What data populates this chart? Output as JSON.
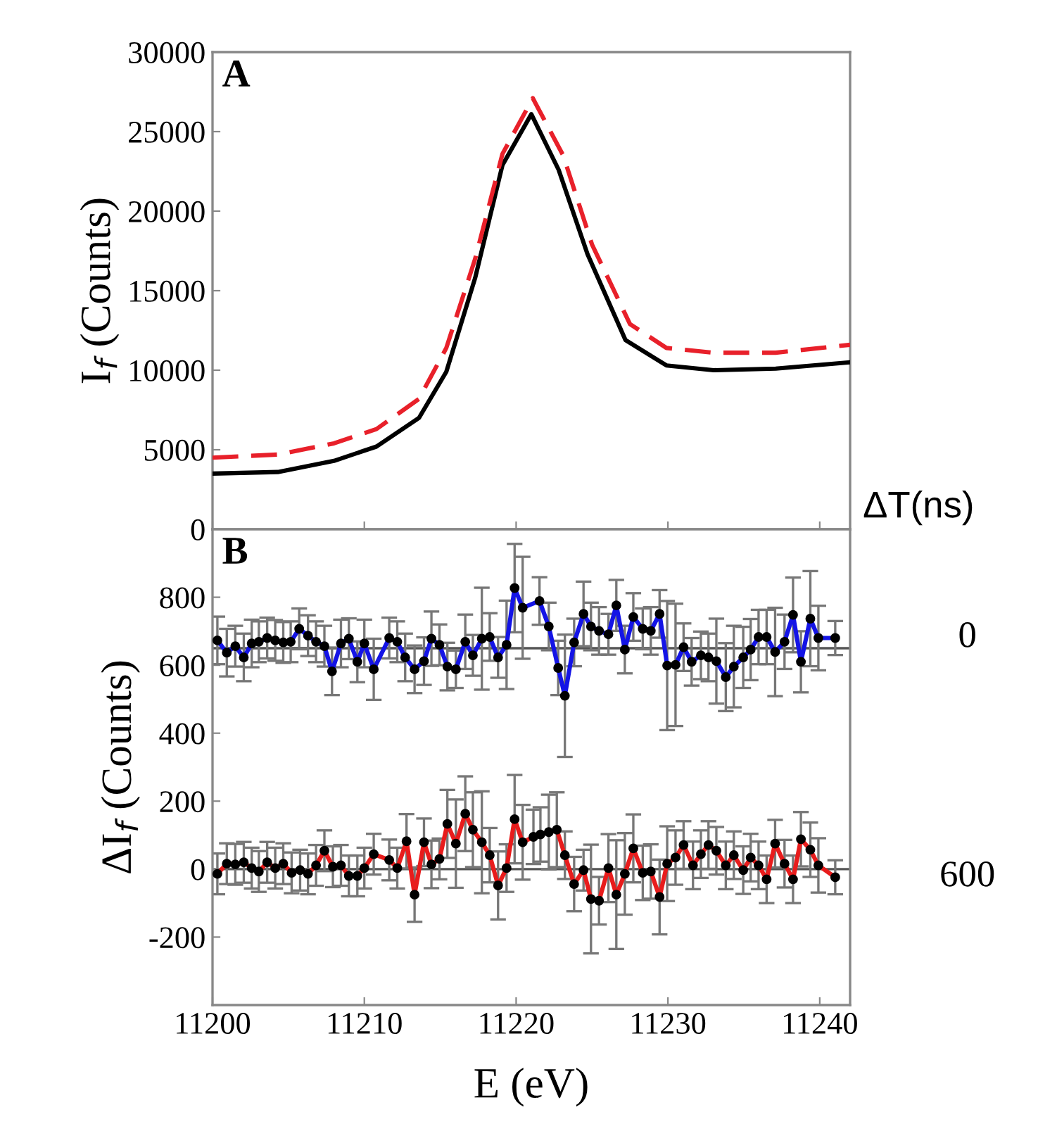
{
  "chart_data": [
    {
      "type": "line",
      "annotations": [
        "A"
      ],
      "ylabel": "I$_{f}$ (Counts)",
      "xlim": [
        11200,
        11242
      ],
      "xticks": [
        11200,
        11210,
        11220,
        11230,
        11240
      ],
      "ylim": [
        0,
        30000
      ],
      "yticks": [
        0,
        5000,
        10000,
        15000,
        20000,
        25000,
        30000
      ],
      "tick_labels": "y",
      "grid": false,
      "legend": false,
      "marker": "none",
      "series": [
        {
          "color": "#000000",
          "line_style": "solid",
          "x": [
            11200,
            11204.3,
            11208,
            11210.8,
            11213.6,
            11215.4,
            11217.3,
            11219.1,
            11221.0,
            11222.8,
            11224.7,
            11227.2,
            11229.9,
            11233.0,
            11237.1,
            11242
          ],
          "values": [
            3500,
            3600,
            4300,
            5200,
            7000,
            9900,
            15800,
            22900,
            26100,
            22600,
            17300,
            11900,
            10300,
            10000,
            10100,
            10500
          ]
        },
        {
          "color": "#e8202a",
          "line_style": "dashed",
          "x": [
            11200,
            11204.3,
            11208,
            11210.8,
            11213.6,
            11215.4,
            11217.3,
            11219.1,
            11221.1,
            11223.1,
            11225.0,
            11227.5,
            11229.9,
            11233.0,
            11237.1,
            11242
          ],
          "values": [
            4500,
            4700,
            5400,
            6300,
            8200,
            11400,
            17000,
            23600,
            27100,
            23500,
            17900,
            12900,
            11400,
            11100,
            11100,
            11600
          ]
        }
      ]
    },
    {
      "type": "line",
      "annotations": [
        "B"
      ],
      "xlabel": "E (eV)",
      "ylabel": "ΔI$_{f}$ (Counts)",
      "legend_title": "ΔT(ns)",
      "xlim": [
        11200,
        11242
      ],
      "xticks": [
        11200,
        11210,
        11220,
        11230,
        11240
      ],
      "ylim": [
        -400,
        1000
      ],
      "yticks": [
        {
          "value": -400,
          "label": null
        },
        -200,
        0,
        200,
        400,
        600,
        800,
        {
          "value": 1000,
          "label": null
        }
      ],
      "grid": false,
      "marker": "circle",
      "ref_lines": [
        {
          "axis": "y",
          "value": 650,
          "color": "#555555"
        },
        {
          "axis": "y",
          "value": 0,
          "color": "#555555"
        }
      ],
      "series": [
        {
          "name": "0",
          "color": "#1414e6",
          "line_style": "solid",
          "x": [
            11200.32,
            11200.94,
            11201.5,
            11202.06,
            11202.58,
            11203.05,
            11203.6,
            11204.13,
            11204.66,
            11205.15,
            11205.71,
            11206.29,
            11206.82,
            11207.37,
            11207.87,
            11208.46,
            11208.98,
            11209.54,
            11210.0,
            11210.62,
            11211.64,
            11212.17,
            11212.69,
            11213.31,
            11213.93,
            11214.42,
            11214.95,
            11215.47,
            11216.03,
            11216.65,
            11217.15,
            11217.74,
            11218.26,
            11218.81,
            11219.37,
            11219.9,
            11220.43,
            11221.54,
            11222.15,
            11222.77,
            11223.21,
            11223.82,
            11224.44,
            11224.93,
            11225.46,
            11226.08,
            11226.6,
            11227.16,
            11227.72,
            11228.34,
            11228.87,
            11229.45,
            11229.95,
            11230.5,
            11231.03,
            11231.56,
            11232.17,
            11232.67,
            11233.19,
            11233.81,
            11234.34,
            11234.96,
            11235.45,
            11235.97,
            11236.5,
            11237.06,
            11237.68,
            11238.24,
            11238.76,
            11239.38,
            11239.91,
            11241.02
          ],
          "values": [
            673,
            637,
            656,
            623,
            664,
            669,
            680,
            673,
            667,
            669,
            707,
            687,
            669,
            656,
            582,
            664,
            678,
            610,
            664,
            588,
            680,
            669,
            623,
            588,
            612,
            678,
            660,
            596,
            588,
            669,
            629,
            678,
            683,
            623,
            660,
            827,
            769,
            789,
            714,
            592,
            510,
            667,
            751,
            714,
            701,
            691,
            776,
            646,
            742,
            707,
            701,
            751,
            599,
            601,
            653,
            610,
            629,
            623,
            612,
            565,
            596,
            623,
            646,
            683,
            683,
            639,
            669,
            748,
            610,
            737,
            680,
            680
          ],
          "errors": [
            70,
            70,
            60,
            70,
            70,
            60,
            60,
            60,
            60,
            60,
            60,
            60,
            60,
            60,
            70,
            70,
            60,
            60,
            70,
            90,
            60,
            60,
            70,
            70,
            70,
            80,
            60,
            70,
            55,
            80,
            60,
            150,
            70,
            60,
            130,
            130,
            150,
            70,
            70,
            80,
            180,
            70,
            95,
            70,
            70,
            60,
            75,
            70,
            70,
            60,
            70,
            70,
            190,
            180,
            70,
            70,
            70,
            70,
            125,
            100,
            120,
            90,
            90,
            80,
            80,
            130,
            80,
            110,
            90,
            140,
            95,
            50
          ]
        },
        {
          "name": "600",
          "color": "#e81c1c",
          "line_style": "solid",
          "x": [
            11200.32,
            11200.94,
            11201.5,
            11202.06,
            11202.58,
            11203.05,
            11203.6,
            11204.13,
            11204.66,
            11205.21,
            11205.77,
            11206.29,
            11206.82,
            11207.37,
            11207.93,
            11208.46,
            11208.98,
            11209.54,
            11210.0,
            11210.62,
            11211.64,
            11212.17,
            11212.78,
            11213.31,
            11213.93,
            11214.42,
            11214.95,
            11215.47,
            11216.03,
            11216.65,
            11217.15,
            11217.74,
            11218.26,
            11218.81,
            11219.37,
            11219.9,
            11220.43,
            11221.14,
            11221.6,
            11222.15,
            11222.68,
            11223.21,
            11223.82,
            11224.44,
            11224.93,
            11225.46,
            11226.08,
            11226.6,
            11227.16,
            11227.72,
            11228.34,
            11228.87,
            11229.45,
            11229.95,
            11230.5,
            11231.03,
            11231.65,
            11232.17,
            11232.67,
            11233.19,
            11233.81,
            11234.34,
            11234.96,
            11235.45,
            11235.97,
            11236.5,
            11237.06,
            11237.68,
            11238.24,
            11238.76,
            11239.38,
            11239.91,
            11241.02
          ],
          "values": [
            -14,
            16,
            14,
            20,
            3,
            -7,
            20,
            3,
            16,
            -11,
            -3,
            -14,
            11,
            54,
            7,
            11,
            -20,
            -20,
            3,
            44,
            27,
            3,
            82,
            -75,
            79,
            14,
            30,
            133,
            75,
            163,
            116,
            79,
            41,
            -48,
            3,
            147,
            79,
            95,
            102,
            109,
            116,
            41,
            -44,
            -3,
            -88,
            -93,
            3,
            -75,
            -14,
            61,
            -11,
            -7,
            -82,
            16,
            34,
            71,
            11,
            44,
            71,
            54,
            11,
            41,
            -3,
            34,
            11,
            -30,
            75,
            16,
            -30,
            88,
            57,
            11,
            -24
          ],
          "errors": [
            60,
            60,
            60,
            60,
            60,
            60,
            60,
            60,
            60,
            60,
            60,
            60,
            60,
            60,
            60,
            60,
            60,
            60,
            60,
            60,
            60,
            60,
            80,
            80,
            70,
            70,
            60,
            100,
            130,
            110,
            110,
            150,
            80,
            100,
            70,
            130,
            110,
            80,
            80,
            110,
            110,
            70,
            80,
            60,
            160,
            70,
            100,
            160,
            120,
            100,
            80,
            80,
            110,
            110,
            80,
            70,
            70,
            70,
            70,
            70,
            70,
            70,
            70,
            70,
            70,
            70,
            70,
            70,
            70,
            80,
            80,
            80,
            50
          ]
        }
      ]
    }
  ]
}
